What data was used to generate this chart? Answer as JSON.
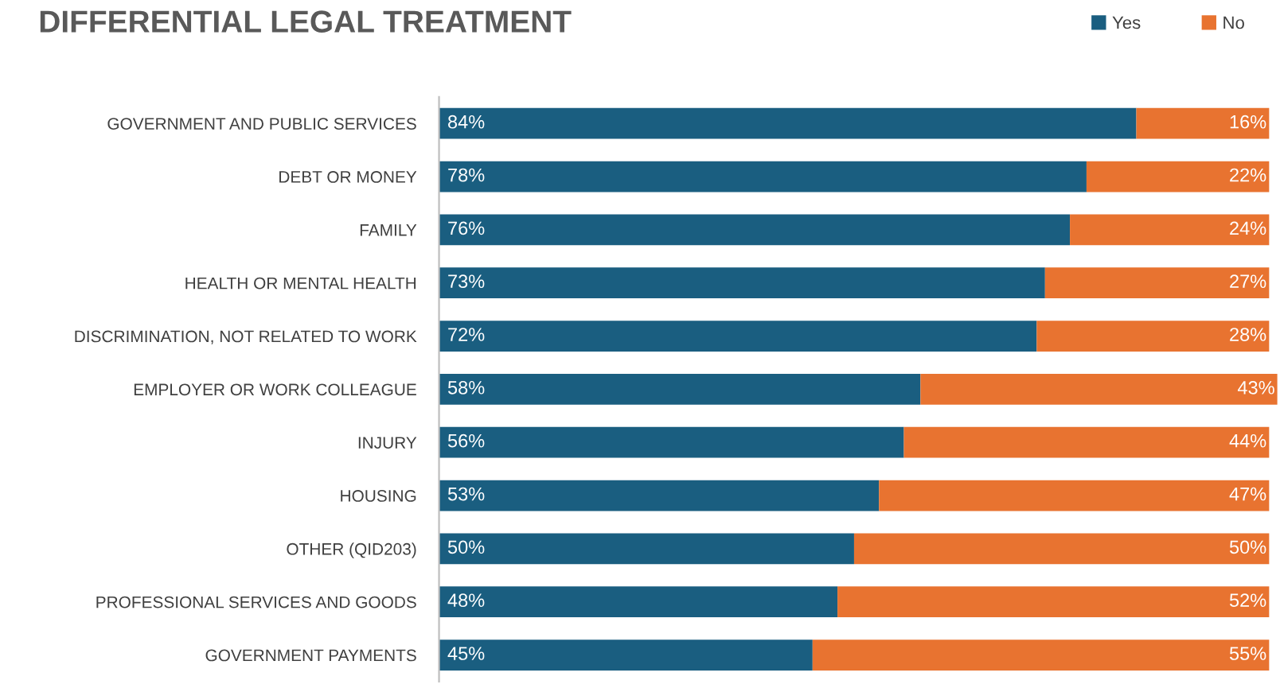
{
  "chart_data": {
    "type": "bar",
    "orientation": "horizontal",
    "stacked": true,
    "title": "DIFFERENTIAL LEGAL TREATMENT",
    "categories": [
      "GOVERNMENT AND PUBLIC SERVICES",
      "DEBT OR MONEY",
      "FAMILY",
      "HEALTH OR MENTAL HEALTH",
      "DISCRIMINATION, NOT RELATED TO WORK",
      "EMPLOYER OR WORK COLLEAGUE",
      "INJURY",
      "HOUSING",
      "OTHER (QID203)",
      "PROFESSIONAL SERVICES AND GOODS",
      "GOVERNMENT PAYMENTS"
    ],
    "series": [
      {
        "name": "Yes",
        "color": "#1a5e80",
        "values": [
          84,
          78,
          76,
          73,
          72,
          58,
          56,
          53,
          50,
          48,
          45
        ],
        "value_labels": [
          "84%",
          "78%",
          "76%",
          "73%",
          "72%",
          "58%",
          "56%",
          "53%",
          "50%",
          "48%",
          "45%"
        ]
      },
      {
        "name": "No",
        "color": "#e87330",
        "values": [
          16,
          22,
          24,
          27,
          28,
          43,
          44,
          47,
          50,
          52,
          55
        ],
        "value_labels": [
          "16%",
          "22%",
          "24%",
          "27%",
          "28%",
          "43%",
          "44%",
          "47%",
          "50%",
          "52%",
          "55%"
        ]
      }
    ],
    "xlim": [
      0,
      101
    ],
    "tick_labels": "y",
    "legend": "top right",
    "grid": false
  }
}
